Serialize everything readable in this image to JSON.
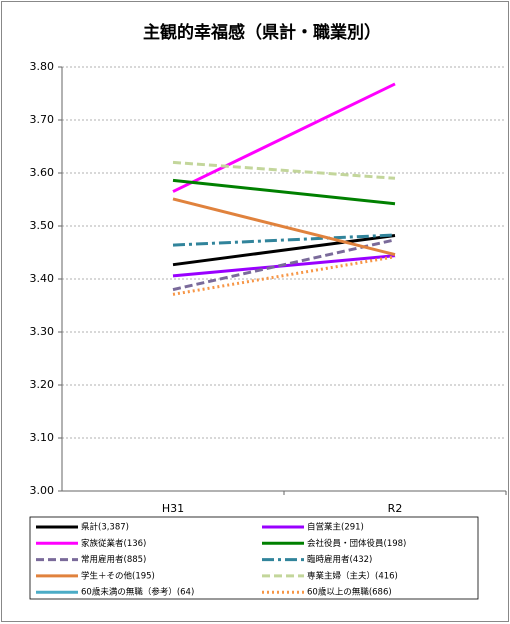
{
  "chart_data": {
    "type": "line",
    "title": "主観的幸福感（県計・職業別）",
    "categories": [
      "H31",
      "R2"
    ],
    "ylim": [
      3.0,
      3.8
    ],
    "yticks": [
      {
        "value": 3.0,
        "label": "3.00"
      },
      {
        "value": 3.1,
        "label": "3.10"
      },
      {
        "value": 3.2,
        "label": "3.20"
      },
      {
        "value": 3.3,
        "label": "3.30"
      },
      {
        "value": 3.4,
        "label": "3.40"
      },
      {
        "value": 3.5,
        "label": "3.50"
      },
      {
        "value": 3.6,
        "label": "3.60"
      },
      {
        "value": 3.7,
        "label": "3.70"
      },
      {
        "value": 3.8,
        "label": "3.80"
      }
    ],
    "grid": true,
    "legend": "bottom",
    "series": [
      {
        "name": "県計(3,387)",
        "color": "#000000",
        "dash": "solid",
        "values": [
          3.427,
          3.482
        ]
      },
      {
        "name": "自営業主(291)",
        "color": "#9900ff",
        "dash": "solid",
        "values": [
          3.406,
          3.444
        ]
      },
      {
        "name": "家族従業者(136)",
        "color": "#ff00ff",
        "dash": "solid",
        "values": [
          3.565,
          3.768
        ]
      },
      {
        "name": "会社役員・団体役員(198)",
        "color": "#008000",
        "dash": "solid",
        "values": [
          3.586,
          3.542
        ]
      },
      {
        "name": "常用雇用者(885)",
        "color": "#7a6a9a",
        "dash": "dash",
        "values": [
          3.38,
          3.474
        ]
      },
      {
        "name": "臨時雇用者(432)",
        "color": "#31849b",
        "dash": "dashdot",
        "values": [
          3.464,
          3.483
        ]
      },
      {
        "name": "学生＋その他(195)",
        "color": "#e0823d",
        "dash": "solid",
        "values": [
          3.551,
          3.446
        ]
      },
      {
        "name": "専業主婦（主夫）(416)",
        "color": "#c3d69b",
        "dash": "dash",
        "values": [
          3.62,
          3.59
        ]
      },
      {
        "name": "60歳未満の無職（参考）(64)",
        "color": "#4bacc6",
        "dash": "solid",
        "values": [
          null,
          null
        ]
      },
      {
        "name": "60歳以上の無職(686)",
        "color": "#f79646",
        "dash": "dot",
        "values": [
          3.371,
          3.442
        ]
      }
    ]
  }
}
